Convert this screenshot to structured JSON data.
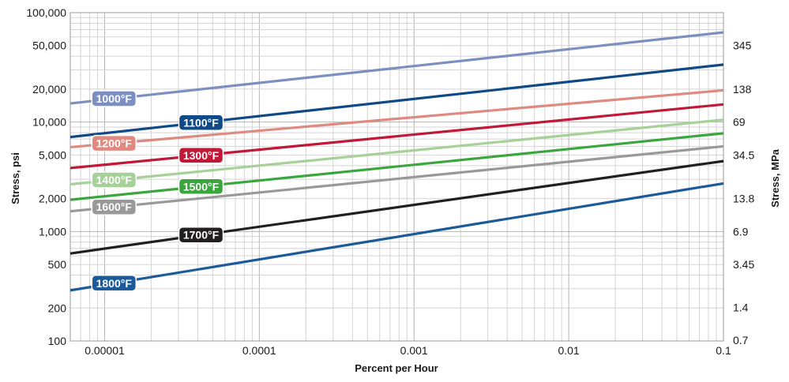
{
  "chart_data": {
    "type": "line",
    "xlabel": "Percent per Hour",
    "ylabel": "Stress, psi",
    "ylabel_right": "Stress, MPa",
    "x_scale": "log",
    "y_scale": "log",
    "xlim": [
      6e-06,
      0.1
    ],
    "ylim": [
      100,
      100000
    ],
    "grid": true,
    "x_ticks": [
      {
        "value": 1e-05,
        "label": "0.00001"
      },
      {
        "value": 0.0001,
        "label": "0.0001"
      },
      {
        "value": 0.001,
        "label": "0.001"
      },
      {
        "value": 0.01,
        "label": "0.01"
      },
      {
        "value": 0.1,
        "label": "0.1"
      }
    ],
    "y_ticks_left": [
      {
        "value": 100,
        "label": "100"
      },
      {
        "value": 200,
        "label": "200"
      },
      {
        "value": 500,
        "label": "500"
      },
      {
        "value": 1000,
        "label": "1,000"
      },
      {
        "value": 2000,
        "label": "2,000"
      },
      {
        "value": 5000,
        "label": "5,000"
      },
      {
        "value": 10000,
        "label": "10,000"
      },
      {
        "value": 20000,
        "label": "20,000"
      },
      {
        "value": 50000,
        "label": "50,000"
      },
      {
        "value": 100000,
        "label": "100,000"
      }
    ],
    "y_ticks_right": [
      {
        "value": 101.5,
        "label": "0.7"
      },
      {
        "value": 203,
        "label": "1.4"
      },
      {
        "value": 500,
        "label": "3.45"
      },
      {
        "value": 1000,
        "label": "6.9"
      },
      {
        "value": 2000,
        "label": "13.8"
      },
      {
        "value": 5000,
        "label": "34.5"
      },
      {
        "value": 10000,
        "label": "69"
      },
      {
        "value": 20000,
        "label": "138"
      },
      {
        "value": 50000,
        "label": "345"
      }
    ],
    "series": [
      {
        "name": "1000°F",
        "color": "#7b8fc0",
        "x": [
          6e-06,
          0.1
        ],
        "y": [
          14800,
          66000
        ],
        "label_at": 1.15e-05
      },
      {
        "name": "1100°F",
        "color": "#0f4a86",
        "x": [
          6e-06,
          0.1
        ],
        "y": [
          7300,
          33500
        ],
        "label_at": 4.2e-05
      },
      {
        "name": "1200°F",
        "color": "#df8a80",
        "x": [
          6e-06,
          0.1
        ],
        "y": [
          5900,
          19500
        ],
        "label_at": 1.15e-05
      },
      {
        "name": "1300°F",
        "color": "#c21837",
        "x": [
          6e-06,
          0.1
        ],
        "y": [
          3800,
          14500
        ],
        "label_at": 4.2e-05
      },
      {
        "name": "1400°F",
        "color": "#a6d198",
        "x": [
          6e-06,
          0.1
        ],
        "y": [
          2700,
          10500
        ],
        "label_at": 1.15e-05
      },
      {
        "name": "1500°F",
        "color": "#3ca63e",
        "x": [
          6e-06,
          0.1
        ],
        "y": [
          1950,
          7900
        ],
        "label_at": 4.2e-05
      },
      {
        "name": "1600°F",
        "color": "#999999",
        "x": [
          6e-06,
          0.1
        ],
        "y": [
          1530,
          6000
        ],
        "label_at": 1.15e-05
      },
      {
        "name": "1700°F",
        "color": "#231f20",
        "x": [
          6e-06,
          0.1
        ],
        "y": [
          630,
          4400
        ],
        "label_at": 4.2e-05
      },
      {
        "name": "1800°F",
        "color": "#1c5a99",
        "x": [
          6e-06,
          0.1
        ],
        "y": [
          290,
          2750
        ],
        "label_at": 1.15e-05
      }
    ]
  }
}
